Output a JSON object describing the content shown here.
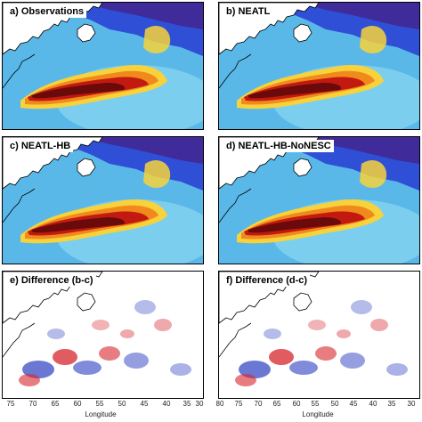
{
  "panels": [
    {
      "label": "a) Observations",
      "kind": "field"
    },
    {
      "label": "b) NEATL",
      "kind": "field"
    },
    {
      "label": "c) NEATL-HB",
      "kind": "field"
    },
    {
      "label": "d) NEATL-HB-NoNESC",
      "kind": "field"
    },
    {
      "label": "e) Difference (b-c)",
      "kind": "difference"
    },
    {
      "label": "f) Difference (d-c)",
      "kind": "difference"
    }
  ],
  "xaxis": {
    "title": "Longitude",
    "left_ticks": [
      "75",
      "70",
      "65",
      "60",
      "55",
      "50",
      "45",
      "40",
      "35",
      "30"
    ],
    "right_ticks": [
      "80",
      "75",
      "70",
      "65",
      "60",
      "55",
      "50",
      "45",
      "40",
      "35",
      "30"
    ]
  },
  "colors": {
    "ocean_low": "#5ab8e8",
    "ocean_mid": "#7fd0ee",
    "north_dark": "#3f2b9a",
    "north_mid": "#2f4fd6",
    "gulf_core": "#6b0a0a",
    "gulf_red": "#c21a10",
    "gulf_orange": "#f08a1c",
    "gulf_yellow": "#f7d23a",
    "diff_red": "#d7262c",
    "diff_blue": "#2b3fc2",
    "land": "#ffffff",
    "coast": "#000000"
  }
}
